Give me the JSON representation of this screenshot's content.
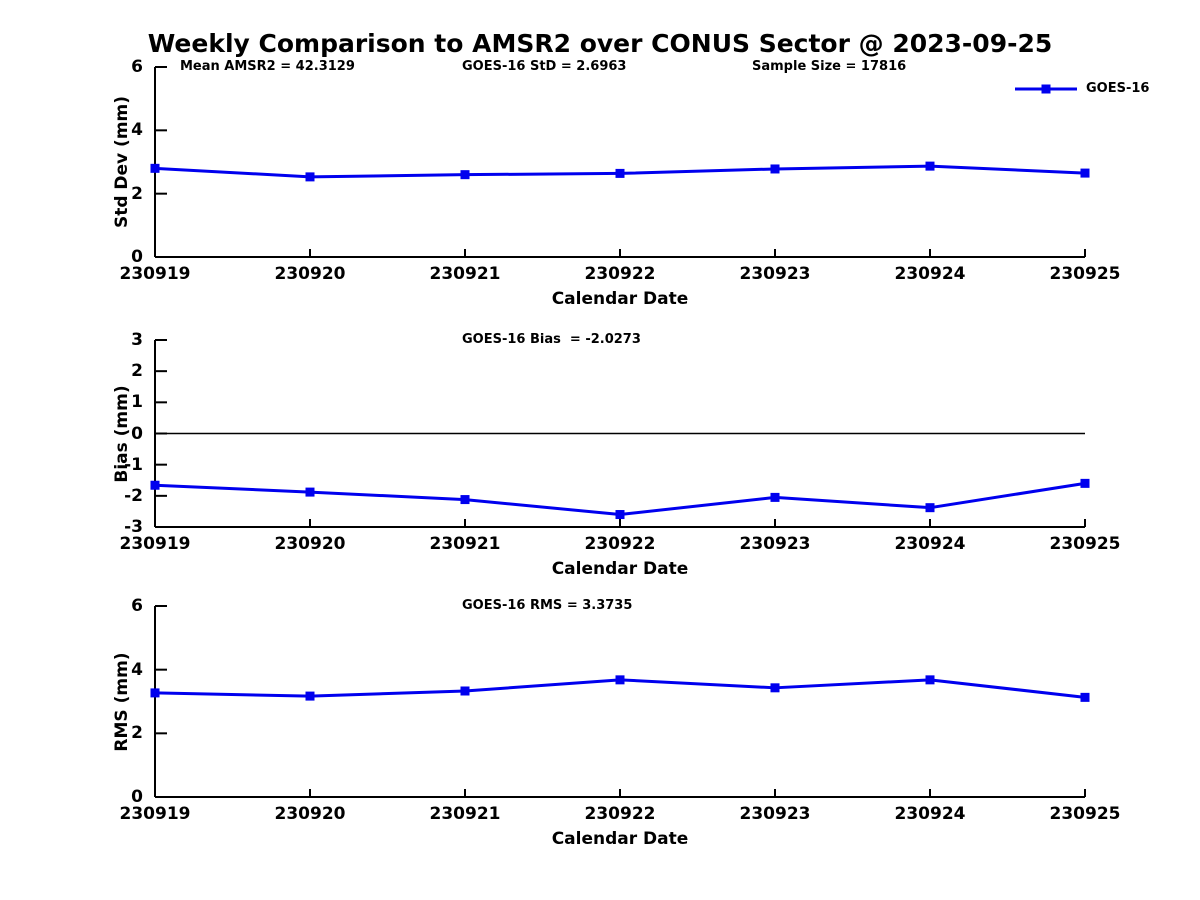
{
  "page_title": "Weekly Comparison to AMSR2 over CONUS Sector @ 2023-09-25",
  "colors": {
    "series": "#0000EE",
    "axis": "#000000",
    "text": "#000000",
    "background": "#FFFFFF"
  },
  "x_axis_label": "Calendar Date",
  "legend": {
    "label": "GOES-16"
  },
  "chart_data": [
    {
      "type": "line",
      "id": "stddev",
      "categories": [
        "230919",
        "230920",
        "230921",
        "230922",
        "230923",
        "230924",
        "230925"
      ],
      "series": [
        {
          "name": "GOES-16",
          "values": [
            2.8,
            2.53,
            2.6,
            2.64,
            2.78,
            2.87,
            2.65
          ]
        }
      ],
      "ylabel": "Std Dev (mm)",
      "xlabel": "Calendar Date",
      "ylim": [
        0,
        6
      ],
      "yticks": [
        0,
        2,
        4,
        6
      ],
      "grid": false,
      "legend_position": "top-right",
      "annotations": [
        "Mean AMSR2 = 42.3129",
        "GOES-16 StD = 2.6963",
        "Sample Size = 17816"
      ]
    },
    {
      "type": "line",
      "id": "bias",
      "categories": [
        "230919",
        "230920",
        "230921",
        "230922",
        "230923",
        "230924",
        "230925"
      ],
      "series": [
        {
          "name": "GOES-16",
          "values": [
            -1.66,
            -1.88,
            -2.12,
            -2.6,
            -2.05,
            -2.38,
            -1.6
          ]
        }
      ],
      "ylabel": "Bias (mm)",
      "xlabel": "Calendar Date",
      "ylim": [
        -3,
        3
      ],
      "yticks": [
        -3,
        -2,
        -1,
        0,
        1,
        2,
        3
      ],
      "zero_line": true,
      "grid": false,
      "annotations": [
        "GOES-16 Bias  = -2.0273"
      ]
    },
    {
      "type": "line",
      "id": "rms",
      "categories": [
        "230919",
        "230920",
        "230921",
        "230922",
        "230923",
        "230924",
        "230925"
      ],
      "series": [
        {
          "name": "GOES-16",
          "values": [
            3.27,
            3.17,
            3.33,
            3.68,
            3.43,
            3.68,
            3.13
          ]
        }
      ],
      "ylabel": "RMS (mm)",
      "xlabel": "Calendar Date",
      "ylim": [
        0,
        6
      ],
      "yticks": [
        0,
        2,
        4,
        6
      ],
      "grid": false,
      "annotations": [
        "GOES-16 RMS = 3.3735"
      ]
    }
  ]
}
